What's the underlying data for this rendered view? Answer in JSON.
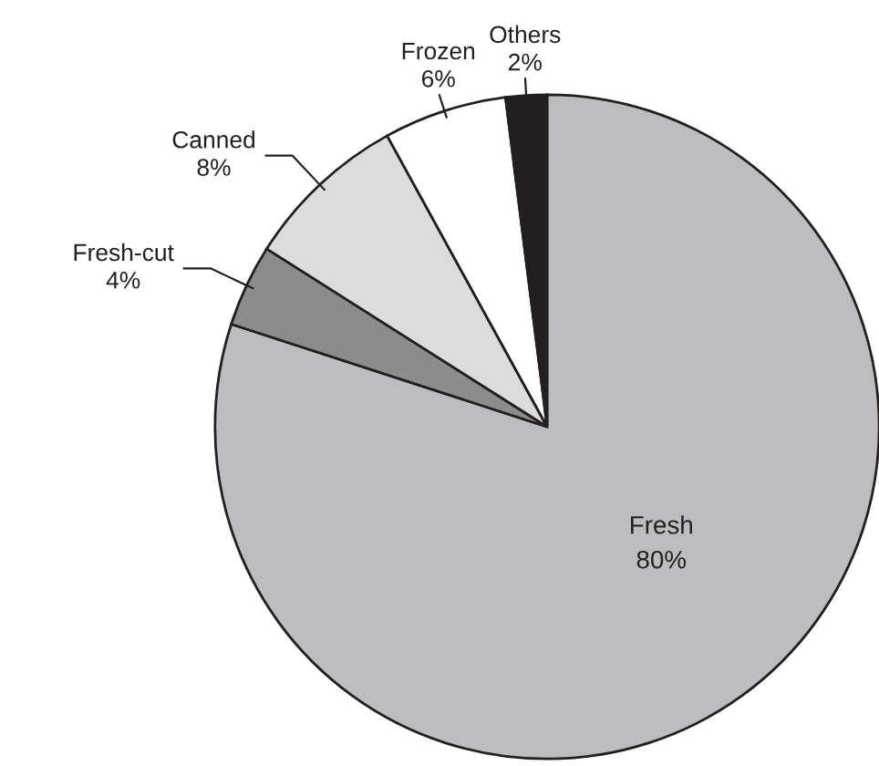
{
  "chart_data": {
    "type": "pie",
    "categories": [
      "Fresh",
      "Fresh-cut",
      "Canned",
      "Frozen",
      "Others"
    ],
    "values": [
      80,
      4,
      8,
      6,
      2
    ],
    "value_labels": [
      "80%",
      "4%",
      "8%",
      "6%",
      "2%"
    ],
    "colors": [
      "#bdbdbf",
      "#8c8c8c",
      "#dcdcdc",
      "#ffffff",
      "#231f20"
    ]
  }
}
